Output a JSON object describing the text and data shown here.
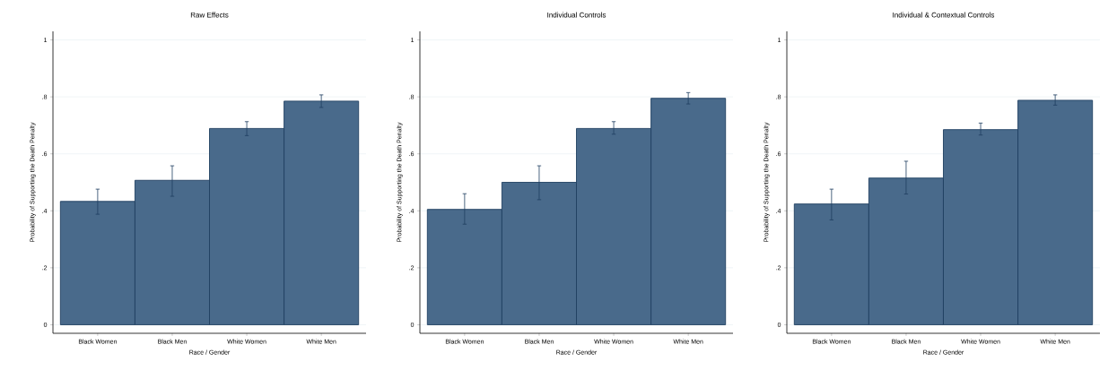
{
  "chart_data": [
    {
      "type": "bar",
      "title": "Raw Effects",
      "xlabel": "Race / Gender",
      "ylabel": "Probability of Supporting the Death Penalty",
      "categories": [
        "Black Women",
        "Black Men",
        "White Women",
        "White Men"
      ],
      "values": [
        0.433,
        0.507,
        0.689,
        0.785
      ],
      "errors": [
        [
          0.388,
          0.476
        ],
        [
          0.451,
          0.558
        ],
        [
          0.664,
          0.713
        ],
        [
          0.763,
          0.807
        ]
      ],
      "color": "#496a8b",
      "ylim": [
        -0.03,
        1.03
      ],
      "yticks": [
        {
          "value": 0,
          "label": "0"
        },
        {
          "value": 0.2,
          "label": ".2"
        },
        {
          "value": 0.4,
          "label": ".4"
        },
        {
          "value": 0.6,
          "label": ".6"
        },
        {
          "value": 0.8,
          "label": ".8"
        },
        {
          "value": 1,
          "label": "1"
        }
      ],
      "grid": "y"
    },
    {
      "type": "bar",
      "title": "Individual Controls",
      "xlabel": "Race / Gender",
      "ylabel": "Probability of Supporting the Death Penalty",
      "categories": [
        "Black Women",
        "Black Men",
        "White Women",
        "White Men"
      ],
      "values": [
        0.405,
        0.5,
        0.689,
        0.795
      ],
      "errors": [
        [
          0.353,
          0.46
        ],
        [
          0.439,
          0.558
        ],
        [
          0.669,
          0.713
        ],
        [
          0.775,
          0.815
        ]
      ],
      "color": "#496a8b",
      "ylim": [
        -0.03,
        1.03
      ],
      "yticks": [
        {
          "value": 0,
          "label": "0"
        },
        {
          "value": 0.2,
          "label": ".2"
        },
        {
          "value": 0.4,
          "label": ".4"
        },
        {
          "value": 0.6,
          "label": ".6"
        },
        {
          "value": 0.8,
          "label": ".8"
        },
        {
          "value": 1,
          "label": "1"
        }
      ],
      "grid": "y"
    },
    {
      "type": "bar",
      "title": "Individual & Contextual Controls",
      "xlabel": "Race / Gender",
      "ylabel": "Probability of Supporting the Death Penalty",
      "categories": [
        "Black Women",
        "Black Men",
        "White Women",
        "White Men"
      ],
      "values": [
        0.424,
        0.515,
        0.685,
        0.788
      ],
      "errors": [
        [
          0.368,
          0.476
        ],
        [
          0.459,
          0.574
        ],
        [
          0.666,
          0.708
        ],
        [
          0.771,
          0.807
        ]
      ],
      "color": "#496a8b",
      "ylim": [
        -0.03,
        1.03
      ],
      "yticks": [
        {
          "value": 0,
          "label": "0"
        },
        {
          "value": 0.2,
          "label": ".2"
        },
        {
          "value": 0.4,
          "label": ".4"
        },
        {
          "value": 0.6,
          "label": ".6"
        },
        {
          "value": 0.8,
          "label": ".8"
        },
        {
          "value": 1,
          "label": "1"
        }
      ],
      "grid": "y"
    }
  ]
}
